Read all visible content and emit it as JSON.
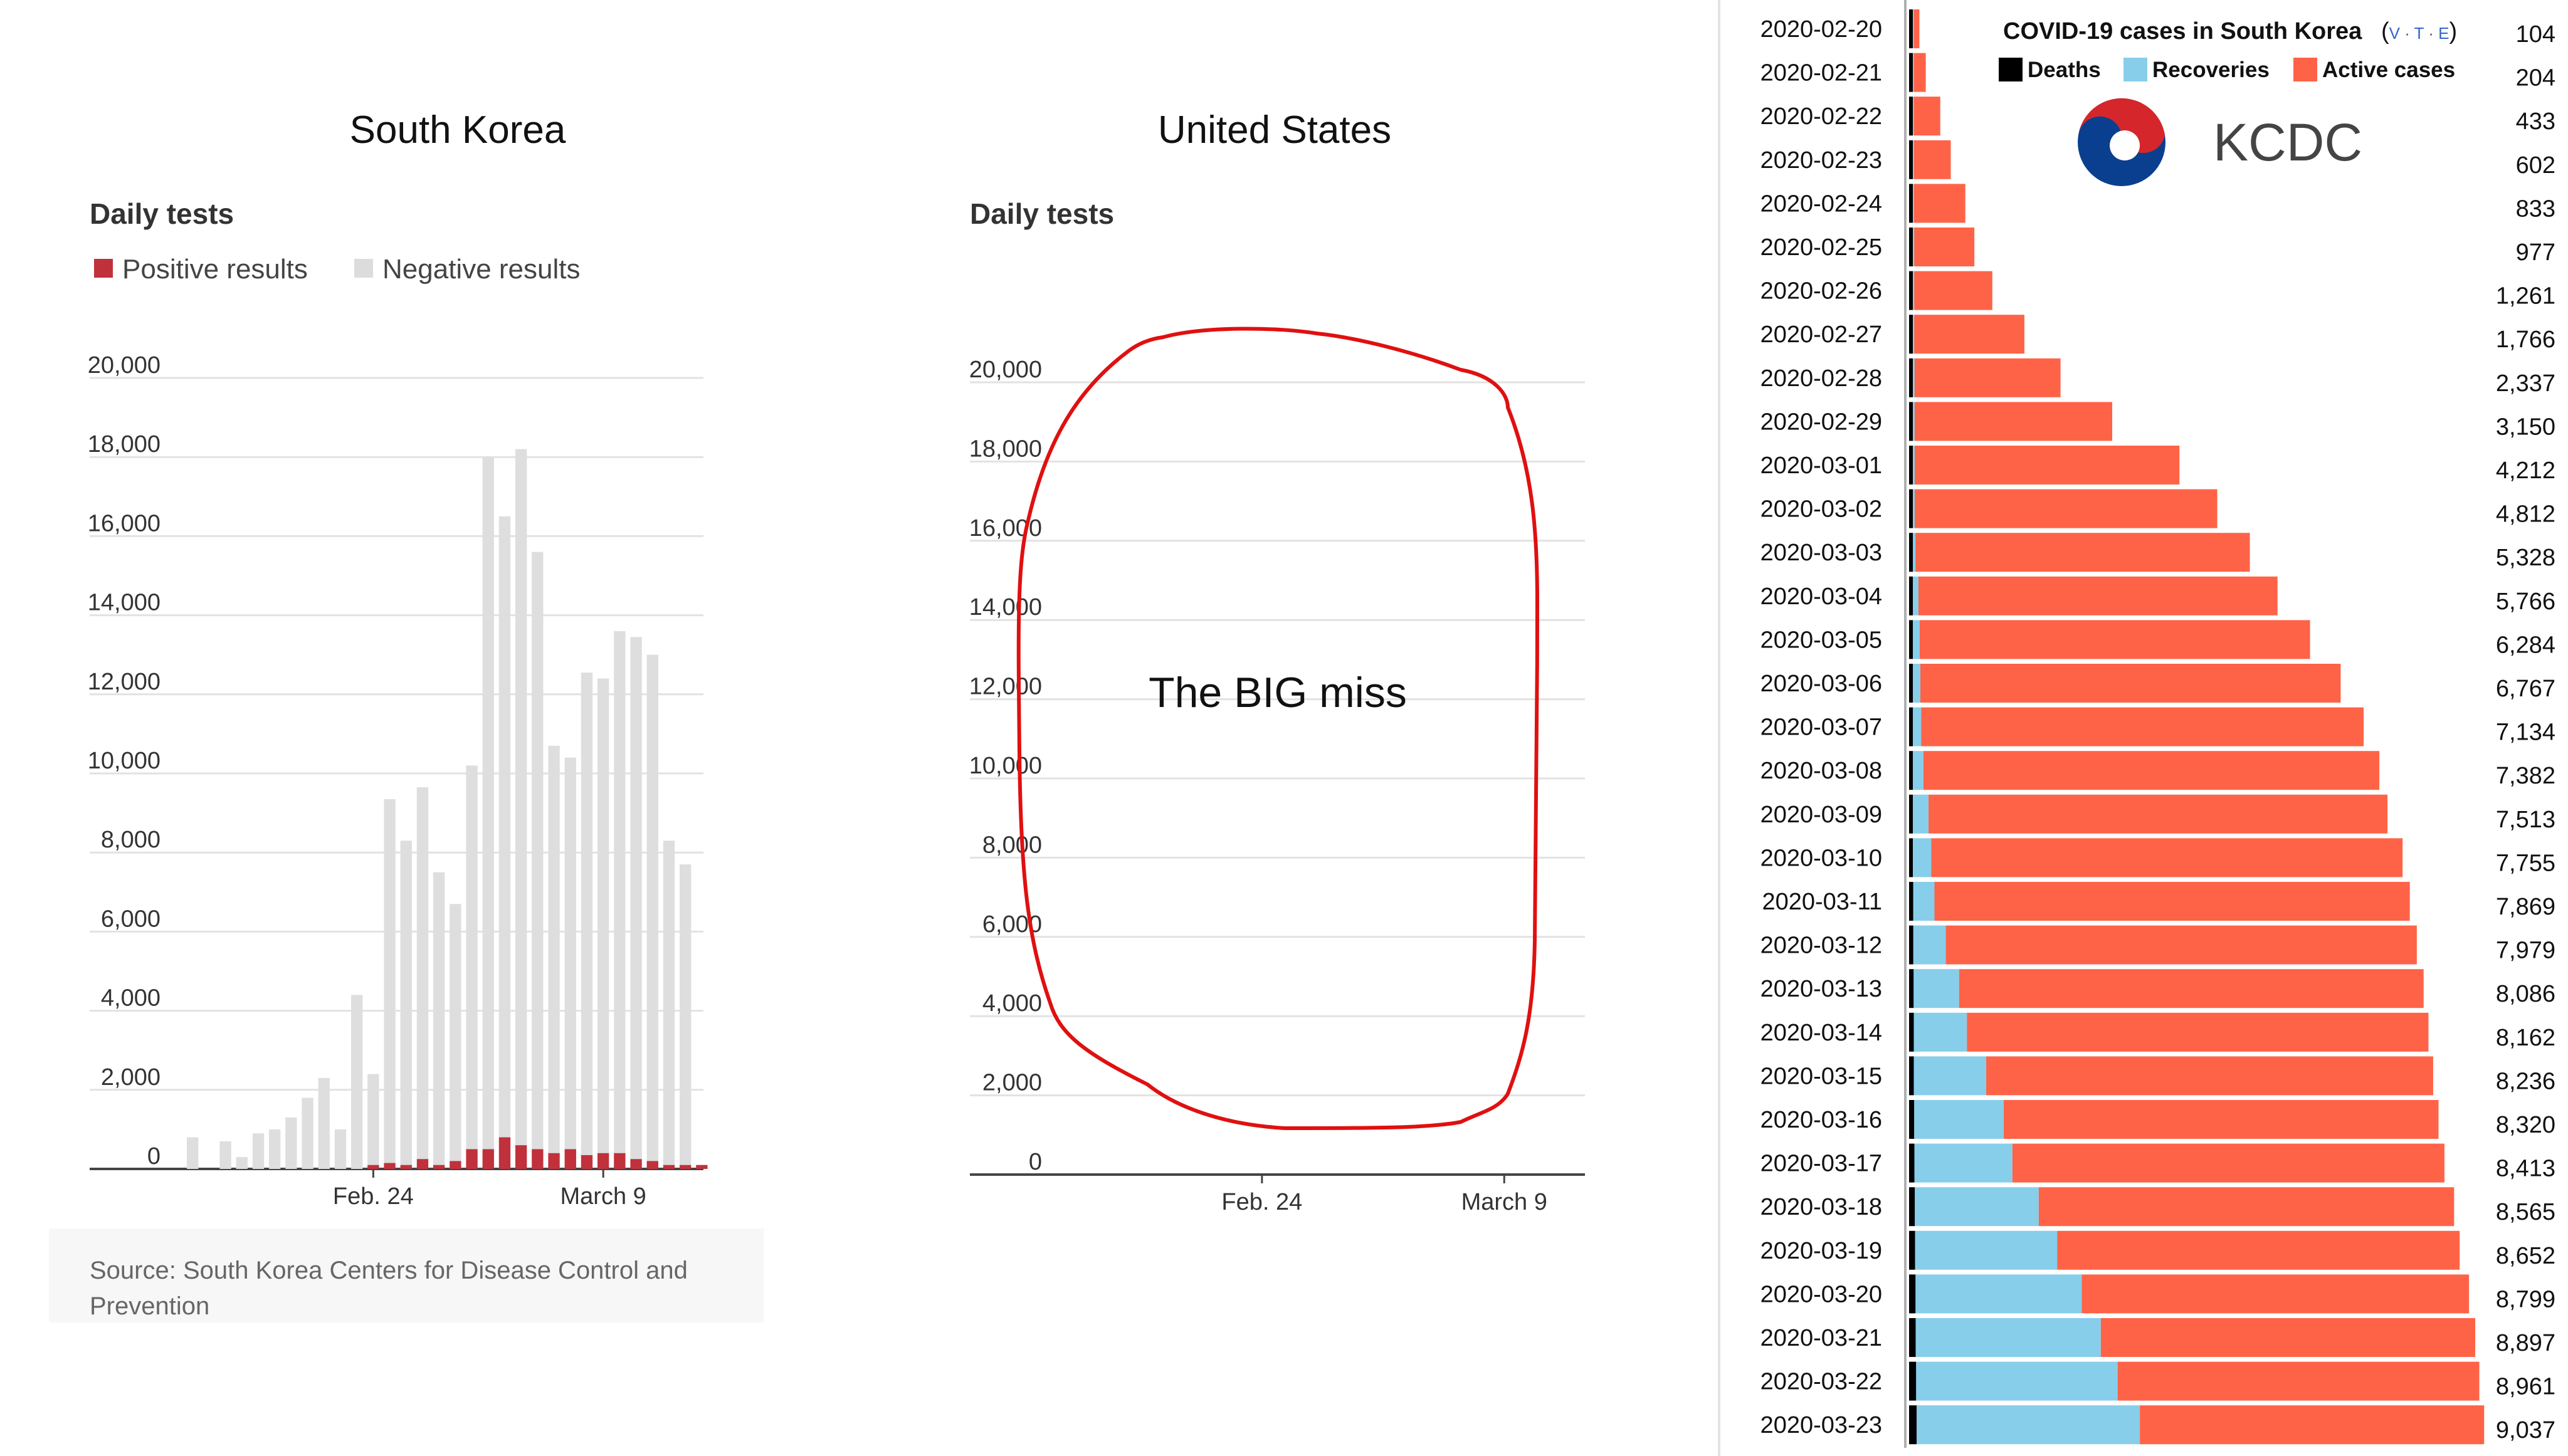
{
  "chart_data": [
    {
      "type": "bar",
      "title": "South Korea",
      "subtitle": "Daily tests",
      "legend": [
        "Positive results",
        "Negative results"
      ],
      "x_ticks": [
        "Feb. 24",
        "March 9"
      ],
      "y_ticks": [
        "0",
        "2,000",
        "4,000",
        "6,000",
        "8,000",
        "10,000",
        "12,000",
        "14,000",
        "16,000",
        "18,000",
        "20,000"
      ],
      "ylim": [
        0,
        20000
      ],
      "stacked": true,
      "series": [
        {
          "name": "Positive results",
          "values": [
            0,
            0,
            0,
            0,
            0,
            0,
            0,
            0,
            0,
            0,
            0,
            100,
            150,
            100,
            250,
            100,
            200,
            500,
            500,
            800,
            600,
            500,
            400,
            500,
            350,
            400,
            400,
            250,
            200,
            100,
            100,
            100,
            0,
            0,
            0,
            0,
            0
          ]
        },
        {
          "name": "Negative results",
          "values": [
            800,
            0,
            700,
            300,
            900,
            1000,
            1300,
            1800,
            2300,
            1000,
            4400,
            2300,
            9200,
            8200,
            9400,
            7400,
            6500,
            9700,
            17500,
            15700,
            17600,
            15100,
            10300,
            9900,
            12200,
            12000,
            13200,
            13200,
            12800,
            8200,
            7600,
            0,
            0,
            0,
            0,
            0,
            0
          ]
        }
      ],
      "source": "Source: South Korea Centers for Disease Control and Prevention"
    },
    {
      "type": "bar",
      "title": "United States",
      "subtitle": "Daily tests",
      "x_ticks": [
        "Feb. 24",
        "March 9"
      ],
      "y_ticks": [
        "0",
        "2,000",
        "4,000",
        "6,000",
        "8,000",
        "10,000",
        "12,000",
        "14,000",
        "16,000",
        "18,000",
        "20,000"
      ],
      "ylim": [
        0,
        20000
      ],
      "values": [
        0,
        0,
        0,
        0,
        0,
        0,
        0,
        0,
        0,
        0,
        0,
        0,
        0,
        0,
        0,
        0,
        0,
        0,
        0,
        0,
        0,
        0,
        0,
        0,
        0,
        0,
        0,
        0,
        0,
        0,
        0,
        0,
        0,
        300,
        1000,
        1100,
        1400
      ],
      "annotation": "The BIG miss"
    },
    {
      "type": "bar",
      "orientation": "horizontal",
      "stacked": true,
      "title": "COVID-19 cases in South Korea",
      "nav_links": [
        "V",
        "T",
        "E"
      ],
      "legend": [
        "Deaths",
        "Recoveries",
        "Active cases"
      ],
      "logo_text": "KCDC",
      "colors": {
        "deaths": "#000000",
        "recoveries": "#87ceeb",
        "active": "#ff6347"
      },
      "categories": [
        "2020-02-20",
        "2020-02-21",
        "2020-02-22",
        "2020-02-23",
        "2020-02-24",
        "2020-02-25",
        "2020-02-26",
        "2020-02-27",
        "2020-02-28",
        "2020-02-29",
        "2020-03-01",
        "2020-03-02",
        "2020-03-03",
        "2020-03-04",
        "2020-03-05",
        "2020-03-06",
        "2020-03-07",
        "2020-03-08",
        "2020-03-09",
        "2020-03-10",
        "2020-03-11",
        "2020-03-12",
        "2020-03-13",
        "2020-03-14",
        "2020-03-15",
        "2020-03-16",
        "2020-03-17",
        "2020-03-18",
        "2020-03-19",
        "2020-03-20",
        "2020-03-21",
        "2020-03-22",
        "2020-03-23"
      ],
      "totals": [
        "104",
        "204",
        "433",
        "602",
        "833",
        "977",
        "1,261",
        "1,766",
        "2,337",
        "3,150",
        "4,212",
        "4,812",
        "5,328",
        "5,766",
        "6,284",
        "6,767",
        "7,134",
        "7,382",
        "7,513",
        "7,755",
        "7,869",
        "7,979",
        "8,086",
        "8,162",
        "8,236",
        "8,320",
        "8,413",
        "8,565",
        "8,652",
        "8,799",
        "8,897",
        "8,961",
        "9,037"
      ],
      "series": [
        {
          "name": "Deaths",
          "values": [
            1,
            1,
            2,
            6,
            8,
            10,
            12,
            13,
            16,
            17,
            22,
            28,
            32,
            35,
            42,
            44,
            50,
            51,
            54,
            60,
            66,
            67,
            72,
            75,
            75,
            81,
            84,
            91,
            94,
            102,
            104,
            111,
            120
          ]
        },
        {
          "name": "Recoveries",
          "values": [
            16,
            16,
            16,
            18,
            18,
            22,
            22,
            22,
            27,
            28,
            30,
            30,
            41,
            88,
            108,
            118,
            130,
            166,
            247,
            288,
            333,
            510,
            714,
            834,
            1137,
            1407,
            1540,
            1947,
            2233,
            2612,
            2909,
            3166,
            3507
          ]
        },
        {
          "name": "Active cases",
          "values": [
            87,
            187,
            415,
            578,
            807,
            945,
            1227,
            1731,
            2294,
            3105,
            4160,
            4754,
            5255,
            5643,
            6134,
            6605,
            6954,
            7165,
            7212,
            7407,
            7470,
            7402,
            7300,
            7253,
            7024,
            6832,
            6789,
            6527,
            6325,
            6085,
            5884,
            5684,
            5410
          ]
        }
      ]
    }
  ]
}
